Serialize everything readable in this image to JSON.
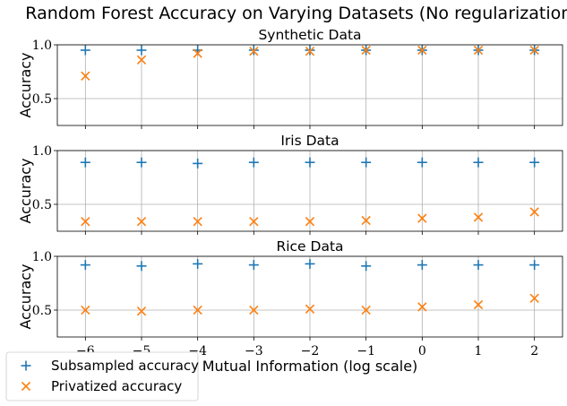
{
  "chart_data": {
    "type": "scatter",
    "title": "Random Forest Accuracy on Varying Datasets (No regularization)",
    "xlabel": "Mutual Information (log scale)",
    "x": [
      -6,
      -5,
      -4,
      -3,
      -2,
      -1,
      0,
      1,
      2
    ],
    "xlim": [
      -6.5,
      2.5
    ],
    "xticks": [
      "−6",
      "−5",
      "−4",
      "−3",
      "−2",
      "−1",
      "0",
      "1",
      "2"
    ],
    "grid": true,
    "legend": {
      "placement": "bottom-left",
      "entries": [
        {
          "name": "Subsampled accuracy",
          "color": "#1f77b4",
          "marker": "plus"
        },
        {
          "name": "Privatized accuracy",
          "color": "#ff7f0e",
          "marker": "x"
        }
      ]
    },
    "panels": [
      {
        "title": "Synthetic Data",
        "ylabel": "Accuracy",
        "ylim": [
          0.25,
          1.0
        ],
        "yticks": [
          {
            "value": 0.5,
            "label": "0.5"
          },
          {
            "value": 1.0,
            "label": "1.0"
          }
        ],
        "series": [
          {
            "name": "Subsampled accuracy",
            "values": [
              0.95,
              0.95,
              0.95,
              0.95,
              0.95,
              0.95,
              0.95,
              0.95,
              0.95
            ]
          },
          {
            "name": "Privatized accuracy",
            "values": [
              0.71,
              0.86,
              0.92,
              0.94,
              0.94,
              0.95,
              0.95,
              0.95,
              0.95
            ]
          }
        ]
      },
      {
        "title": "Iris Data",
        "ylabel": "Accuracy",
        "ylim": [
          0.25,
          1.0
        ],
        "yticks": [
          {
            "value": 0.5,
            "label": "0.5"
          },
          {
            "value": 1.0,
            "label": "1.0"
          }
        ],
        "series": [
          {
            "name": "Subsampled accuracy",
            "values": [
              0.89,
              0.89,
              0.88,
              0.89,
              0.89,
              0.89,
              0.89,
              0.89,
              0.89
            ]
          },
          {
            "name": "Privatized accuracy",
            "values": [
              0.34,
              0.34,
              0.34,
              0.34,
              0.34,
              0.35,
              0.37,
              0.38,
              0.43
            ]
          }
        ]
      },
      {
        "title": "Rice Data",
        "ylabel": "Accuracy",
        "ylim": [
          0.25,
          1.0
        ],
        "yticks": [
          {
            "value": 0.5,
            "label": "0.5"
          },
          {
            "value": 1.0,
            "label": "1.0"
          }
        ],
        "series": [
          {
            "name": "Subsampled accuracy",
            "values": [
              0.92,
              0.91,
              0.93,
              0.92,
              0.93,
              0.91,
              0.92,
              0.92,
              0.92
            ]
          },
          {
            "name": "Privatized accuracy",
            "values": [
              0.5,
              0.49,
              0.5,
              0.5,
              0.51,
              0.5,
              0.53,
              0.55,
              0.61
            ]
          }
        ]
      }
    ]
  }
}
